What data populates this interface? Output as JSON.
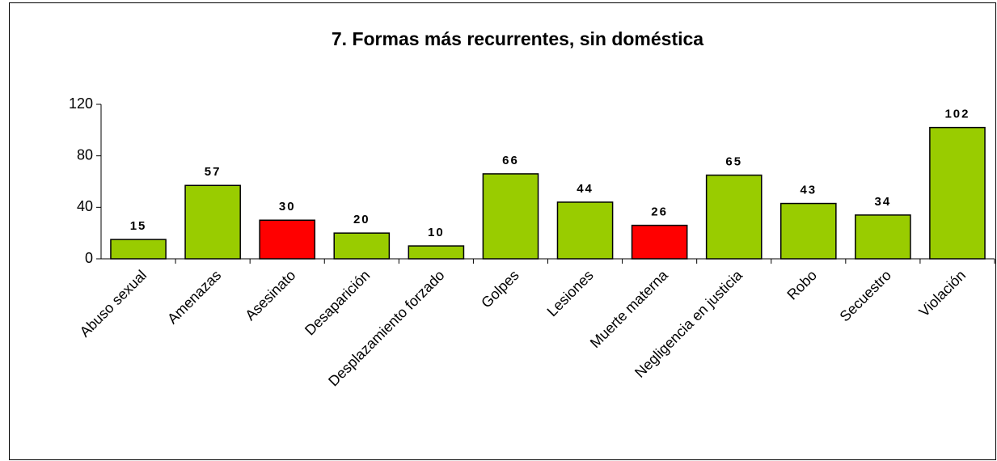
{
  "chart_data": {
    "type": "bar",
    "title": "7. Formas más recurrentes, sin doméstica",
    "categories": [
      "Abuso sexual",
      "Amenazas",
      "Asesinato",
      "Desaparición",
      "Desplazamiento forzado",
      "Golpes",
      "Lesiones",
      "Muerte materna",
      "Negligencia en justicia",
      "Robo",
      "Secuestro",
      "Violación"
    ],
    "values": [
      15,
      57,
      30,
      20,
      10,
      66,
      44,
      26,
      65,
      43,
      34,
      102
    ],
    "colors": [
      "#99cc00",
      "#99cc00",
      "#ff0000",
      "#99cc00",
      "#99cc00",
      "#99cc00",
      "#99cc00",
      "#ff0000",
      "#99cc00",
      "#99cc00",
      "#99cc00",
      "#99cc00"
    ],
    "ylim": [
      0,
      120
    ],
    "yticks": [
      0,
      40,
      80,
      120
    ],
    "grid": false
  }
}
